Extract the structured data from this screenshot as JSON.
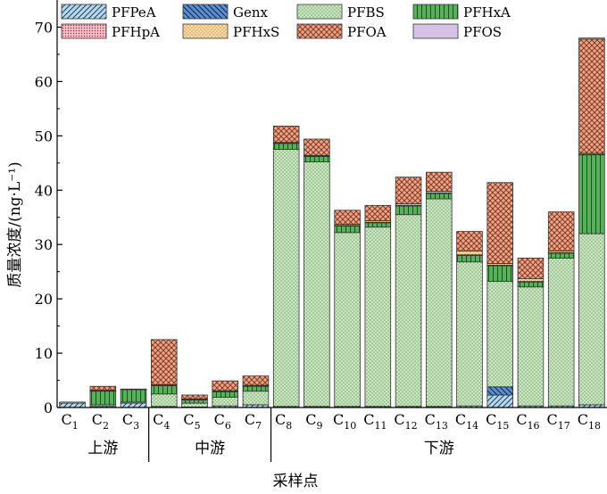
{
  "chart_data": {
    "type": "stacked-bar",
    "xlabel": "采样点",
    "ylabel": "质量浓度/(ng·L⁻¹)",
    "ylim": [
      0,
      75
    ],
    "yticks": [
      0,
      10,
      20,
      30,
      40,
      50,
      60,
      70
    ],
    "grid": false,
    "legend_position": "top",
    "categories": [
      {
        "base": "C",
        "sub": "1"
      },
      {
        "base": "C",
        "sub": "2"
      },
      {
        "base": "C",
        "sub": "3"
      },
      {
        "base": "C",
        "sub": "4"
      },
      {
        "base": "C",
        "sub": "5"
      },
      {
        "base": "C",
        "sub": "6"
      },
      {
        "base": "C",
        "sub": "7"
      },
      {
        "base": "C",
        "sub": "8"
      },
      {
        "base": "C",
        "sub": "9"
      },
      {
        "base": "C",
        "sub": "10"
      },
      {
        "base": "C",
        "sub": "11"
      },
      {
        "base": "C",
        "sub": "12"
      },
      {
        "base": "C",
        "sub": "13"
      },
      {
        "base": "C",
        "sub": "14"
      },
      {
        "base": "C",
        "sub": "15"
      },
      {
        "base": "C",
        "sub": "16"
      },
      {
        "base": "C",
        "sub": "17"
      },
      {
        "base": "C",
        "sub": "18"
      }
    ],
    "groups": [
      {
        "label": "上游",
        "start": 0,
        "end": 2
      },
      {
        "label": "中游",
        "start": 3,
        "end": 6
      },
      {
        "label": "下游",
        "start": 7,
        "end": 17
      }
    ],
    "series": [
      {
        "name": "PFPeA",
        "color": "#b8d8ec",
        "pattern": "diag-fwd-thin",
        "values": [
          0.8,
          0.2,
          0.8,
          0.2,
          0.1,
          0.3,
          0.5,
          0.2,
          0.2,
          0.2,
          0.2,
          0.2,
          0.2,
          0.3,
          2.3,
          0.3,
          0.3,
          0.5
        ]
      },
      {
        "name": "Genx",
        "color": "#5a8fd0",
        "pattern": "diag-back",
        "values": [
          0,
          0,
          0,
          0,
          0,
          0,
          0,
          0,
          0,
          0,
          0,
          0,
          0,
          0,
          1.5,
          0,
          0,
          0
        ]
      },
      {
        "name": "PFBS",
        "color": "#cce6c2",
        "pattern": "dots",
        "values": [
          0.2,
          0.3,
          0.2,
          2.3,
          0.7,
          1.6,
          2.5,
          47.3,
          45.0,
          32.0,
          33.0,
          35.3,
          38.2,
          26.5,
          19.4,
          21.9,
          27.2,
          31.5
        ]
      },
      {
        "name": "PFHxA",
        "color": "#58b15a",
        "pattern": "vlines",
        "values": [
          0,
          2.5,
          2.3,
          1.5,
          0.6,
          1.0,
          0.9,
          1.1,
          1.0,
          1.2,
          0.8,
          1.6,
          1.0,
          1.2,
          2.9,
          0.9,
          0.9,
          14.5
        ]
      },
      {
        "name": "PFHpA",
        "color": "#f3c2cc",
        "pattern": "dense-dots",
        "values": [
          0,
          0.1,
          0.1,
          0.1,
          0.1,
          0.1,
          0.1,
          0.1,
          0.1,
          0.1,
          0.1,
          0.1,
          0.1,
          0.1,
          0.1,
          0.1,
          0.1,
          0.1
        ]
      },
      {
        "name": "PFHxS",
        "color": "#f5d9a6",
        "pattern": "dots",
        "values": [
          0,
          0.1,
          0,
          0.1,
          0.1,
          0.1,
          0.1,
          0.1,
          0.1,
          0.2,
          0.3,
          0.3,
          0.3,
          0.7,
          0.3,
          0.5,
          0.3,
          0.2
        ]
      },
      {
        "name": "PFOA",
        "color": "#e9a78f",
        "pattern": "crosshatch",
        "values": [
          0,
          0.7,
          0,
          8.3,
          0.7,
          1.8,
          1.7,
          3.0,
          3.0,
          2.6,
          2.8,
          4.9,
          3.5,
          3.6,
          14.9,
          3.8,
          7.2,
          21.0
        ]
      },
      {
        "name": "PFOS",
        "color": "#d5c2e6",
        "pattern": "solid",
        "values": [
          0,
          0,
          0,
          0,
          0,
          0,
          0,
          0,
          0,
          0,
          0,
          0,
          0,
          0,
          0,
          0,
          0,
          0.2
        ]
      }
    ]
  }
}
